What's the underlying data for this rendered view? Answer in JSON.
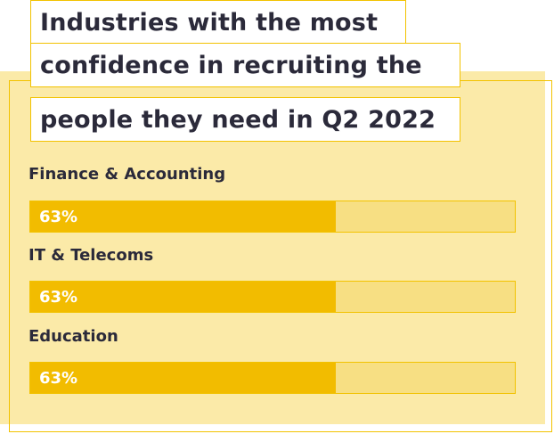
{
  "chart_data": {
    "type": "bar",
    "orientation": "horizontal",
    "title_lines": [
      "Industries with the most",
      "confidence in recruiting the",
      "people they need in Q2 2022"
    ],
    "categories": [
      "Finance & Accounting",
      "IT & Telecoms",
      "Education"
    ],
    "values": [
      63,
      63,
      63
    ],
    "value_labels": [
      "63%",
      "63%",
      "63%"
    ],
    "xlim": [
      0,
      100
    ],
    "grid": false,
    "legend": "none",
    "colors": {
      "bar": "#f2bc00",
      "track": "#f7df83",
      "panel": "#fbeaa8",
      "outline": "#f2c200",
      "text": "#2b2a3a"
    }
  }
}
